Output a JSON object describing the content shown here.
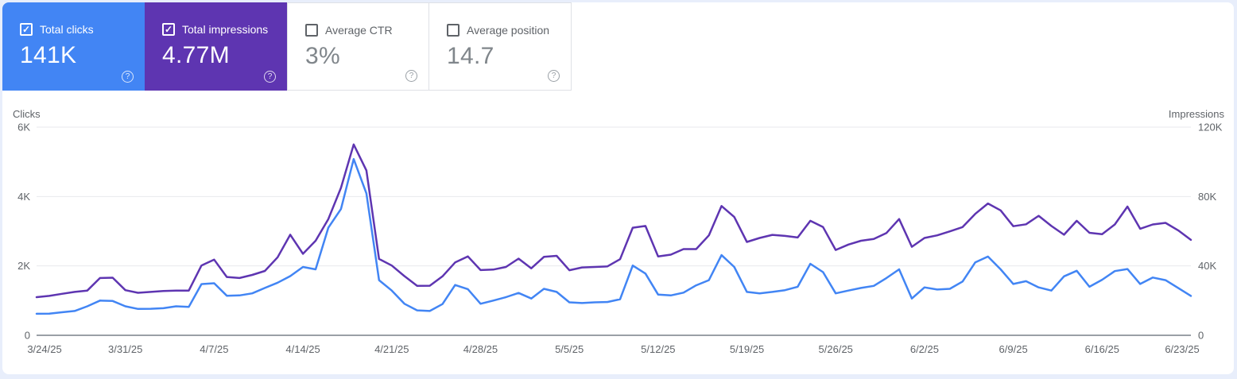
{
  "page": {
    "background": "#e8eefb",
    "panel_background": "#ffffff"
  },
  "metric_cards": [
    {
      "label": "Total clicks",
      "value": "141K",
      "checked": true,
      "selected": true,
      "bg": "#4285f4"
    },
    {
      "label": "Total impressions",
      "value": "4.77M",
      "checked": true,
      "selected": true,
      "bg": "#5e35b1"
    },
    {
      "label": "Average CTR",
      "value": "3%",
      "checked": false,
      "selected": false,
      "bg": ""
    },
    {
      "label": "Average position",
      "value": "14.7",
      "checked": false,
      "selected": false,
      "bg": ""
    }
  ],
  "help_glyph": "?",
  "check_glyph": "✓",
  "chart_data": {
    "type": "line",
    "start_date": "3/24/25",
    "end_date": "6/23/25",
    "x_tick_labels": [
      "3/24/25",
      "3/31/25",
      "4/7/25",
      "4/14/25",
      "4/21/25",
      "4/28/25",
      "5/5/25",
      "5/12/25",
      "5/19/25",
      "5/26/25",
      "6/2/25",
      "6/9/25",
      "6/16/25",
      "6/23/25"
    ],
    "left_axis": {
      "title": "Clicks",
      "tick_labels": [
        "0",
        "2K",
        "4K",
        "6K"
      ],
      "range": [
        0,
        6000
      ]
    },
    "right_axis": {
      "title": "Impressions",
      "tick_labels": [
        "0",
        "40K",
        "80K",
        "120K"
      ],
      "range": [
        0,
        120000
      ]
    },
    "grid": "horizontal",
    "legend": "none",
    "series": [
      {
        "name": "Clicks",
        "axis": "left",
        "color": "#4285f4",
        "values": [
          620,
          625,
          665,
          700,
          835,
          1000,
          990,
          835,
          760,
          765,
          780,
          835,
          820,
          1475,
          1500,
          1140,
          1150,
          1210,
          1365,
          1515,
          1705,
          1970,
          1900,
          3100,
          3640,
          5080,
          4090,
          1590,
          1290,
          910,
          720,
          700,
          900,
          1450,
          1330,
          910,
          1000,
          1100,
          1220,
          1060,
          1340,
          1250,
          950,
          930,
          950,
          960,
          1040,
          2010,
          1780,
          1175,
          1150,
          1230,
          1440,
          1590,
          2310,
          1970,
          1250,
          1210,
          1250,
          1300,
          1400,
          2060,
          1820,
          1210,
          1290,
          1365,
          1425,
          1650,
          1900,
          1060,
          1380,
          1320,
          1340,
          1550,
          2100,
          2270,
          1900,
          1480,
          1560,
          1380,
          1290,
          1700,
          1860,
          1400,
          1600,
          1850,
          1910,
          1480,
          1665,
          1590,
          1365,
          1135
        ]
      },
      {
        "name": "Impressions",
        "axis": "right",
        "color": "#5e35b1",
        "values": [
          22000,
          22700,
          23900,
          25000,
          25800,
          33000,
          33200,
          26000,
          24500,
          25000,
          25500,
          25800,
          25800,
          40200,
          43600,
          33600,
          33000,
          34800,
          37100,
          45000,
          58000,
          47000,
          54500,
          67000,
          85000,
          110000,
          95000,
          44000,
          40200,
          34100,
          28500,
          28600,
          34000,
          42000,
          45500,
          37600,
          37900,
          39400,
          44200,
          38600,
          45200,
          45800,
          37500,
          39100,
          39400,
          39700,
          43900,
          62000,
          63000,
          45500,
          46500,
          49700,
          49700,
          57600,
          74500,
          68200,
          53800,
          56100,
          57900,
          57300,
          56400,
          66000,
          62400,
          49200,
          52300,
          54500,
          55500,
          59000,
          67000,
          51000,
          56100,
          57600,
          59900,
          62400,
          70000,
          76000,
          72000,
          62900,
          64000,
          68900,
          63000,
          58000,
          66000,
          59100,
          58300,
          63900,
          74200,
          61400,
          63900,
          64800,
          60500,
          55000
        ]
      }
    ],
    "layout": {
      "plot_left": 46,
      "plot_right": 1498,
      "top_y": 160,
      "baseline_y": 422,
      "gridline_color": "#e8eaed",
      "baseline_color": "#9aa0a6"
    }
  }
}
